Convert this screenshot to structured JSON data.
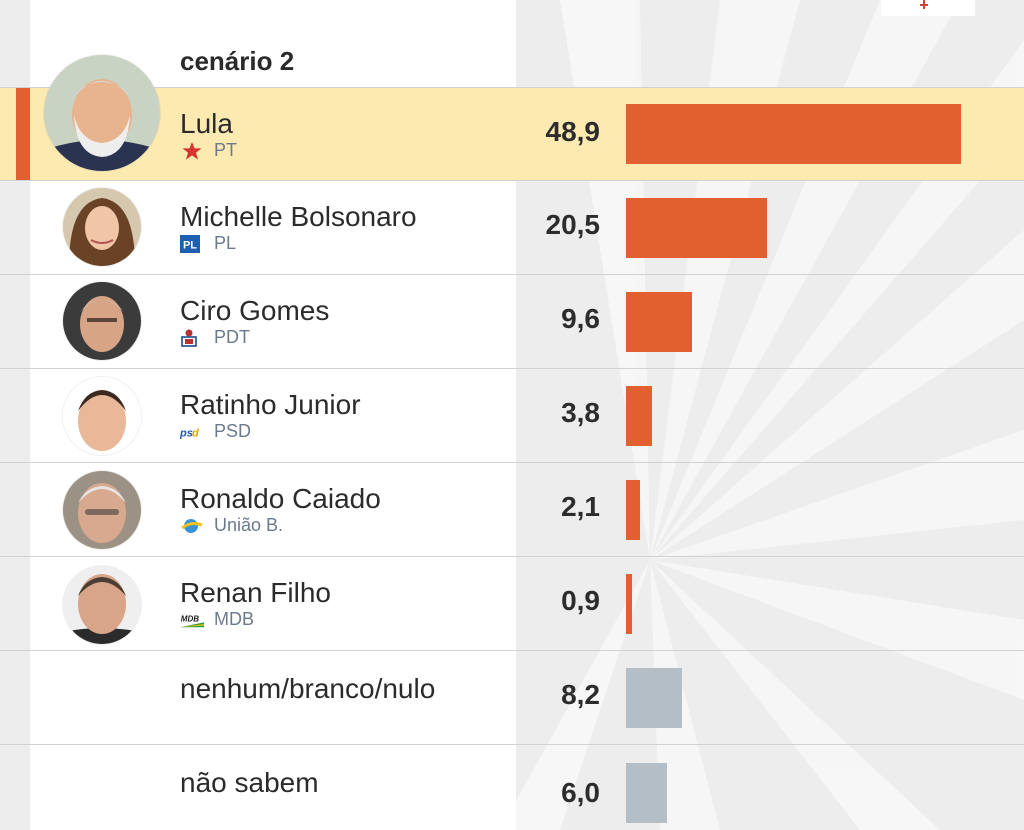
{
  "scenario": "cenário 2",
  "colors": {
    "candidate_bar": "#e25f2f",
    "other_bar": "#b4bec6",
    "highlight": "#fdeab1"
  },
  "chart_data": {
    "type": "bar",
    "orientation": "horizontal",
    "title": "cenário 2",
    "categories": [
      "Lula",
      "Michelle Bolsonaro",
      "Ciro Gomes",
      "Ratinho Junior",
      "Ronaldo Caiado",
      "Renan Filho",
      "nenhum/branco/nulo",
      "não sabem"
    ],
    "values": [
      48.9,
      20.5,
      9.6,
      3.8,
      2.1,
      0.9,
      8.2,
      6.0
    ],
    "xlim": [
      0,
      50
    ]
  },
  "rows": [
    {
      "name": "Lula",
      "party": "PT",
      "party_icon": "pt-star-icon",
      "value": "48,9",
      "highlight": true
    },
    {
      "name": "Michelle Bolsonaro",
      "party": "PL",
      "party_icon": "pl-logo-icon",
      "value": "20,5"
    },
    {
      "name": "Ciro Gomes",
      "party": "PDT",
      "party_icon": "pdt-logo-icon",
      "value": "9,6"
    },
    {
      "name": "Ratinho Junior",
      "party": "PSD",
      "party_icon": "psd-logo-icon",
      "value": "3,8"
    },
    {
      "name": "Ronaldo Caiado",
      "party": "União B.",
      "party_icon": "uniao-logo-icon",
      "value": "2,1"
    },
    {
      "name": "Renan Filho",
      "party": "MDB",
      "party_icon": "mdb-logo-icon",
      "value": "0,9"
    },
    {
      "name": "nenhum/branco/nulo",
      "value": "8,2"
    },
    {
      "name": "não sabem",
      "value": "6,0"
    }
  ]
}
